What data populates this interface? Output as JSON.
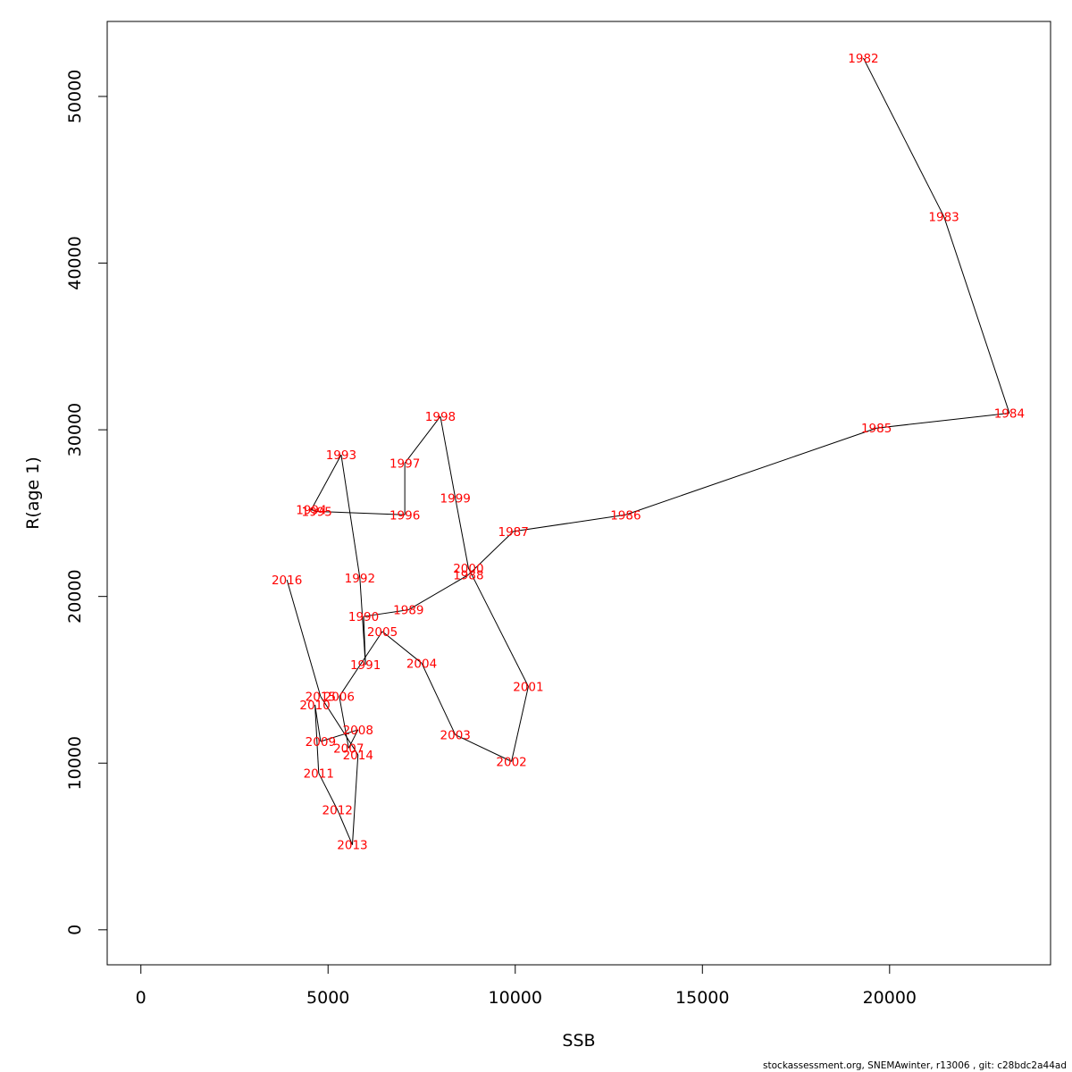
{
  "chart_data": {
    "type": "line",
    "xlabel": "SSB",
    "ylabel": "R(age 1)",
    "xlim": [
      -900,
      24300
    ],
    "ylim": [
      -2100,
      54500
    ],
    "xticks": [
      0,
      5000,
      10000,
      15000,
      20000
    ],
    "yticks": [
      0,
      10000,
      20000,
      30000,
      40000,
      50000
    ],
    "line_color": "#000000",
    "label_color": "#ff0000",
    "points": [
      {
        "label": "1982",
        "x": 19300,
        "y": 52300
      },
      {
        "label": "1983",
        "x": 21450,
        "y": 42800
      },
      {
        "label": "1984",
        "x": 23200,
        "y": 31000
      },
      {
        "label": "1985",
        "x": 19650,
        "y": 30100
      },
      {
        "label": "1986",
        "x": 12950,
        "y": 24900
      },
      {
        "label": "1987",
        "x": 9950,
        "y": 23900
      },
      {
        "label": "1988",
        "x": 8750,
        "y": 21300
      },
      {
        "label": "1989",
        "x": 7150,
        "y": 19200
      },
      {
        "label": "1990",
        "x": 5950,
        "y": 18800
      },
      {
        "label": "1991",
        "x": 6000,
        "y": 15900
      },
      {
        "label": "1992",
        "x": 5850,
        "y": 21100
      },
      {
        "label": "1993",
        "x": 5350,
        "y": 28500
      },
      {
        "label": "1994",
        "x": 4550,
        "y": 25200
      },
      {
        "label": "1995",
        "x": 4700,
        "y": 25100
      },
      {
        "label": "1996",
        "x": 7050,
        "y": 24900
      },
      {
        "label": "1997",
        "x": 7050,
        "y": 28000
      },
      {
        "label": "1998",
        "x": 8000,
        "y": 30800
      },
      {
        "label": "1999",
        "x": 8400,
        "y": 25900
      },
      {
        "label": "2000",
        "x": 8750,
        "y": 21700
      },
      {
        "label": "2001",
        "x": 10350,
        "y": 14600
      },
      {
        "label": "2002",
        "x": 9900,
        "y": 10100
      },
      {
        "label": "2003",
        "x": 8400,
        "y": 11700
      },
      {
        "label": "2004",
        "x": 7500,
        "y": 16000
      },
      {
        "label": "2005",
        "x": 6450,
        "y": 17900
      },
      {
        "label": "2006",
        "x": 5300,
        "y": 14000
      },
      {
        "label": "2007",
        "x": 5550,
        "y": 10900
      },
      {
        "label": "2008",
        "x": 5800,
        "y": 12000
      },
      {
        "label": "2009",
        "x": 4800,
        "y": 11300
      },
      {
        "label": "2010",
        "x": 4650,
        "y": 13500
      },
      {
        "label": "2011",
        "x": 4750,
        "y": 9400
      },
      {
        "label": "2012",
        "x": 5250,
        "y": 7200
      },
      {
        "label": "2013",
        "x": 5650,
        "y": 5100
      },
      {
        "label": "2014",
        "x": 5800,
        "y": 10500
      },
      {
        "label": "2015",
        "x": 4800,
        "y": 14000
      },
      {
        "label": "2016",
        "x": 3900,
        "y": 21000
      }
    ]
  },
  "footer": "stockassessment.org, SNEMAwinter, r13006 , git: c28bdc2a44ad"
}
